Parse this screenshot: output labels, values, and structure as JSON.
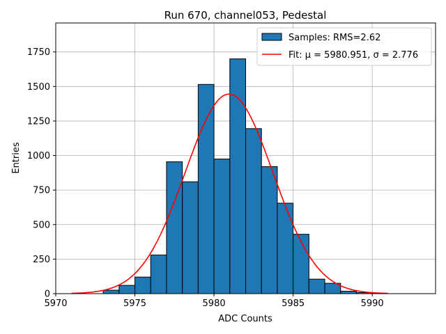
{
  "chart_data": {
    "type": "bar",
    "title": "Run 670, channel053, Pedestal",
    "xlabel": "ADC Counts",
    "ylabel": "Entries",
    "xlim": [
      5970,
      5994
    ],
    "ylim": [
      0,
      1960
    ],
    "xticks": [
      5970,
      5975,
      5980,
      5985,
      5990
    ],
    "yticks": [
      0,
      250,
      500,
      750,
      1000,
      1250,
      1500,
      1750
    ],
    "grid": true,
    "legend_position": "top-right",
    "colors": {
      "bars": "#1f77b4",
      "bar_edge": "#000000",
      "fit": "#ff0000",
      "grid": "#b0b0b0"
    },
    "histogram": {
      "name": "Samples: RMS=2.62",
      "bin_left_edges": [
        5973,
        5974,
        5975,
        5976,
        5977,
        5978,
        5979,
        5980,
        5981,
        5982,
        5983,
        5984,
        5985,
        5986,
        5987,
        5988,
        5989
      ],
      "bin_width": 1,
      "values": [
        25,
        60,
        120,
        280,
        955,
        810,
        1515,
        975,
        1700,
        1195,
        920,
        655,
        430,
        105,
        75,
        18,
        8
      ]
    },
    "fit": {
      "name": "Fit: μ = 5980.951, σ = 2.776",
      "mu": 5980.951,
      "sigma": 2.776,
      "peak": 1445,
      "x_range": [
        5971,
        5991
      ]
    }
  }
}
